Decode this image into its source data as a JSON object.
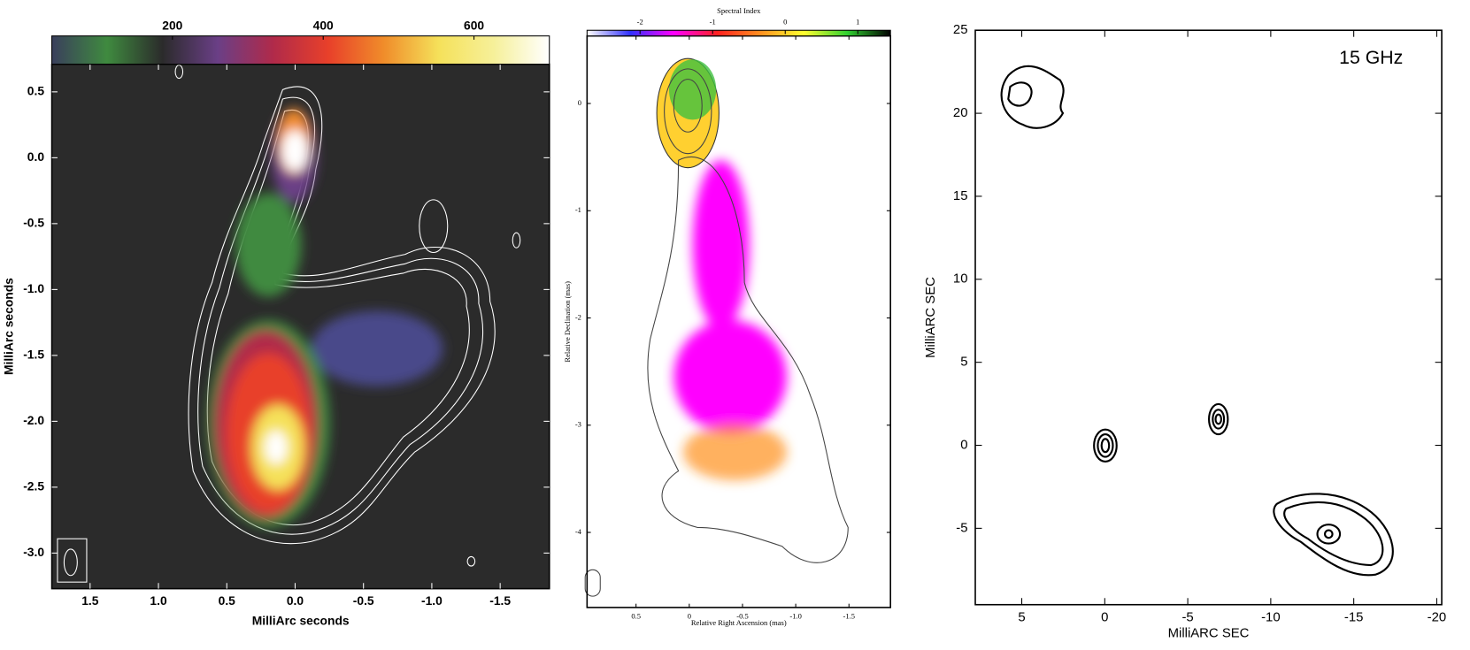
{
  "chart_data": [
    {
      "type": "contour-map",
      "xlabel": "MilliArc seconds",
      "ylabel": "MilliArc seconds",
      "xlim": [
        1.78,
        -1.86
      ],
      "ylim": [
        -3.27,
        0.71
      ],
      "xticks": [
        1.5,
        {
          "value": 1,
          "label": "1.0"
        },
        0.5,
        {
          "value": 0,
          "label": "0.0"
        },
        -0.5,
        {
          "value": -1,
          "label": "-1.0"
        },
        -1.5
      ],
      "yticks": [
        0.5,
        {
          "value": 0,
          "label": "0.0"
        },
        -0.5,
        {
          "value": -1,
          "label": "-1.0"
        },
        -1.5,
        {
          "value": -2,
          "label": "-2.0"
        },
        -2.5,
        {
          "value": -3,
          "label": "-3.0"
        }
      ],
      "colorbar": {
        "lim": [
          40,
          700
        ],
        "ticks": [
          200,
          400,
          600
        ],
        "colors": [
          "#3a3f5c",
          "#3f8a3f",
          "#2b2b2b",
          "#6a3f86",
          "#b02a4a",
          "#e8402a",
          "#f08c2a",
          "#f5e15a",
          "#f6f09a",
          "#ffffff"
        ]
      }
    },
    {
      "type": "contour-map",
      "xlabel": "Relative Right Ascension (mas)",
      "ylabel": "Relative Declination (mas)",
      "xlim": [
        0.96,
        -1.89
      ],
      "ylim": [
        -4.7,
        0.63
      ],
      "xticks": [
        0.5,
        0,
        -0.5,
        {
          "value": -1,
          "label": "-1.0"
        },
        -1.5
      ],
      "yticks": [
        0,
        -1,
        -2,
        -3,
        -4
      ],
      "colorbar": {
        "label": "Spectral Index",
        "lim": [
          -2.73,
          1.45
        ],
        "ticks": [
          -2,
          -1,
          0,
          1
        ],
        "colors": [
          "#ffffff",
          "#3030ff",
          "#ff00ff",
          "#ff2020",
          "#ff9020",
          "#ffff30",
          "#30d030",
          "#000000"
        ]
      }
    },
    {
      "type": "contour-map",
      "annotation": "15 GHz",
      "xlabel": "MilliARC SEC",
      "ylabel": "MilliARC SEC",
      "xlim": [
        7.8,
        -20.3
      ],
      "ylim": [
        -9.6,
        25
      ],
      "xticks": [
        5,
        0,
        -5,
        -10,
        -15,
        -20
      ],
      "yticks": [
        25,
        20,
        15,
        10,
        5,
        0,
        -5
      ]
    }
  ]
}
